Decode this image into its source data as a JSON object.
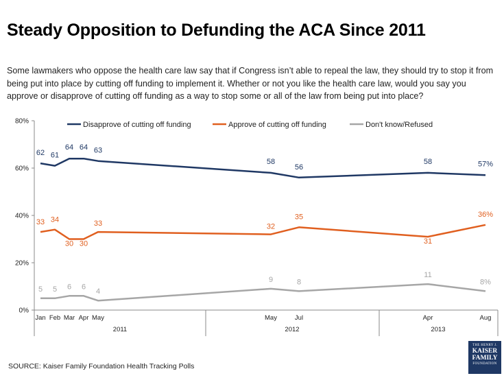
{
  "title": "Steady Opposition to Defunding the ACA Since 2011",
  "question": "Some lawmakers who oppose the health care law say that if Congress isn’t able to repeal the law, they should try to stop it from being put into place by cutting off funding to implement it. Whether or not you like the health care law, would you say you approve or disapprove of cutting off funding as a way to stop some or all of the law from being put into place?",
  "source": "SOURCE: Kaiser Family Foundation Health Tracking Polls",
  "logo": {
    "line1": "THE HENRY J.",
    "line2": "KAISER",
    "line3": "FAMILY",
    "line4": "FOUNDATION"
  },
  "colors": {
    "disapprove": "#1f3864",
    "approve": "#e05f1f",
    "dontknow": "#a6a6a6",
    "logo_bg": "#1f3864"
  },
  "chart_data": {
    "type": "line",
    "ylim": [
      0,
      80
    ],
    "yticks": [
      "0%",
      "20%",
      "40%",
      "60%",
      "80%"
    ],
    "ytick_values": [
      0,
      20,
      40,
      60,
      80
    ],
    "grid": false,
    "legend_position": "top",
    "categories": [
      "Jan",
      "Feb",
      "Mar",
      "Apr",
      "May",
      "May",
      "Jul",
      "Apr",
      "Aug"
    ],
    "years": [
      {
        "label": "2011",
        "from": 0,
        "to": 4
      },
      {
        "label": "2012",
        "from": 5,
        "to": 6
      },
      {
        "label": "2013",
        "from": 7,
        "to": 8
      }
    ],
    "series": [
      {
        "name": "Disapprove of cutting off funding",
        "color": "#1f3864",
        "values": [
          62,
          61,
          64,
          64,
          63,
          58,
          56,
          58,
          57
        ],
        "labels": [
          "62",
          "61",
          "64",
          "64",
          "63",
          "58",
          "56",
          "58",
          "57%"
        ]
      },
      {
        "name": "Approve of cutting off funding",
        "color": "#e05f1f",
        "values": [
          33,
          34,
          30,
          30,
          33,
          32,
          35,
          31,
          36
        ],
        "labels": [
          "33",
          "34",
          "30",
          "30",
          "33",
          "32",
          "35",
          "31",
          "36%"
        ]
      },
      {
        "name": "Don't know/Refused",
        "color": "#a6a6a6",
        "values": [
          5,
          5,
          6,
          6,
          4,
          9,
          8,
          11,
          8
        ],
        "labels": [
          "5",
          "5",
          "6",
          "6",
          "4",
          "9",
          "8",
          "11",
          "8%"
        ]
      }
    ]
  }
}
